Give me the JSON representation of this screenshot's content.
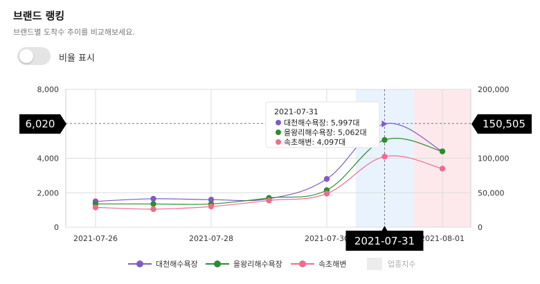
{
  "header": {
    "title": "브랜드 랭킹",
    "subtitle": "브랜드별 도착수 추이를 비교해보세요."
  },
  "toggle": {
    "label": "비율 표시",
    "on": false
  },
  "chart_data": {
    "type": "line",
    "categories": [
      "2021-07-26",
      "2021-07-27",
      "2021-07-28",
      "2021-07-29",
      "2021-07-30",
      "2021-07-31",
      "2021-08-01"
    ],
    "x_tick_labels": [
      "2021-07-26",
      "2021-07-28",
      "2021-07-30",
      "2021-08-01"
    ],
    "ylim": [
      0,
      8000
    ],
    "y_ticks": [
      "0",
      "2,000",
      "4,000",
      "8,000"
    ],
    "y2lim": [
      0,
      200000
    ],
    "y2_ticks": [
      "0",
      "50,000",
      "100,000",
      "200,000"
    ],
    "grid": true,
    "legend_position": "bottom",
    "series": [
      {
        "name": "대천해수욕장",
        "color": "#7e5cc4",
        "values": [
          1500,
          1650,
          1600,
          1650,
          2800,
          5997,
          4400
        ]
      },
      {
        "name": "을왕리해수욕장",
        "color": "#2e8b2e",
        "values": [
          1350,
          1350,
          1350,
          1700,
          2150,
          5062,
          4400
        ]
      },
      {
        "name": "속초해변",
        "color": "#f06b8d",
        "values": [
          1150,
          1050,
          1200,
          1550,
          1950,
          4097,
          3400
        ]
      }
    ],
    "band": {
      "name": "업종지수",
      "from": "2021-07-31",
      "to": "2021-08-01",
      "colors": [
        "#e8f3fd",
        "#fde9ec"
      ]
    },
    "crosshair": {
      "date": "2021-07-31",
      "left_value": "6,020",
      "right_value": "150,505"
    },
    "tooltip": {
      "date": "2021-07-31",
      "rows": [
        "대천해수욕장: 5,997대",
        "을왕리해수욕장: 5,062대",
        "속초해변: 4,097대"
      ]
    }
  }
}
